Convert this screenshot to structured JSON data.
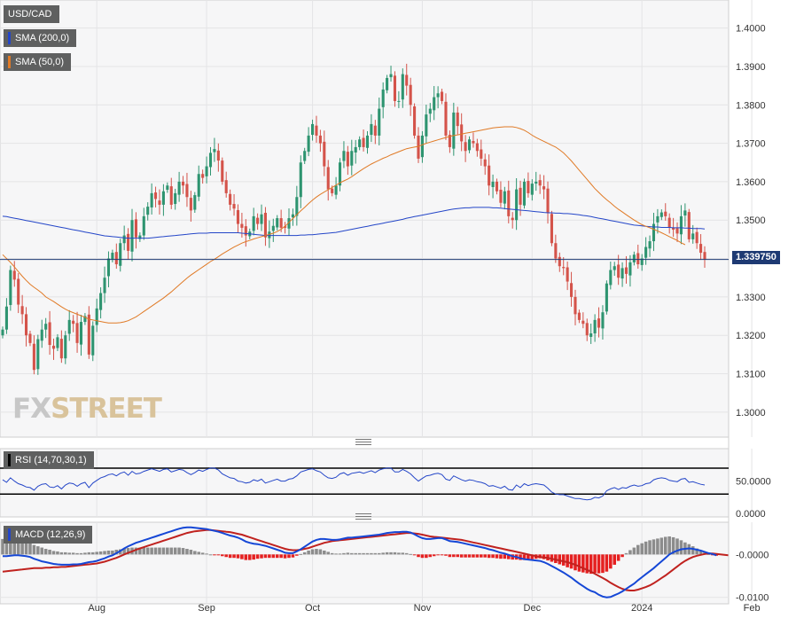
{
  "colors": {
    "up": "#2e9470",
    "down": "#d4534a",
    "sma200": "#2446c8",
    "sma50": "#e07a26",
    "rsi": "#2446c8",
    "macd": "#1547d6",
    "signal": "#c0221f",
    "hist_pos": "#8c8c8c",
    "hist_neg": "#e52020",
    "price_line": "#1e3a73"
  },
  "legend": {
    "symbol": "USD/CAD",
    "sma200": "SMA (200,0)",
    "sma50": "SMA (50,0)",
    "rsi": "RSI (14,70,30,1)",
    "macd": "MACD (12,26,9)"
  },
  "watermark": {
    "fx": "FX",
    "street": "STREET"
  },
  "current_price": "1.339750",
  "chart_data": [
    {
      "type": "candlestick",
      "title": "USD/CAD",
      "x_ticks": [
        "Aug",
        "Sep",
        "Oct",
        "Nov",
        "Dec",
        "2024",
        "Feb"
      ],
      "x_tick_index": [
        24,
        52,
        79,
        107,
        135,
        163,
        191
      ],
      "ylim": [
        1.2935,
        1.4073
      ],
      "y_ticks": [
        "1.4000",
        "1.3900",
        "1.3800",
        "1.3700",
        "1.3600",
        "1.3500",
        "1.3400",
        "1.3300",
        "1.3200",
        "1.3100",
        "1.3000"
      ],
      "y_tick_values": [
        1.4,
        1.39,
        1.38,
        1.37,
        1.36,
        1.35,
        1.34,
        1.33,
        1.32,
        1.31,
        1.3
      ],
      "closes": [
        1.3215,
        1.3275,
        1.337,
        1.3345,
        1.328,
        1.3255,
        1.32,
        1.318,
        1.311,
        1.319,
        1.3215,
        1.323,
        1.3175,
        1.3165,
        1.3195,
        1.314,
        1.32,
        1.324,
        1.323,
        1.318,
        1.3235,
        1.325,
        1.315,
        1.3225,
        1.327,
        1.331,
        1.335,
        1.34,
        1.3415,
        1.3385,
        1.344,
        1.346,
        1.342,
        1.35,
        1.3455,
        1.346,
        1.351,
        1.3535,
        1.357,
        1.3555,
        1.354,
        1.3575,
        1.359,
        1.354,
        1.357,
        1.36,
        1.359,
        1.356,
        1.3525,
        1.3565,
        1.362,
        1.361,
        1.364,
        1.3675,
        1.3685,
        1.3655,
        1.36,
        1.357,
        1.354,
        1.353,
        1.349,
        1.348,
        1.346,
        1.347,
        1.351,
        1.349,
        1.3515,
        1.3455,
        1.347,
        1.3485,
        1.3505,
        1.348,
        1.348,
        1.3505,
        1.3515,
        1.356,
        1.365,
        1.368,
        1.372,
        1.375,
        1.372,
        1.37,
        1.364,
        1.358,
        1.357,
        1.359,
        1.365,
        1.368,
        1.364,
        1.368,
        1.369,
        1.371,
        1.369,
        1.372,
        1.375,
        1.372,
        1.379,
        1.384,
        1.387,
        1.388,
        1.381,
        1.381,
        1.388,
        1.385,
        1.38,
        1.372,
        1.366,
        1.372,
        1.3775,
        1.379,
        1.382,
        1.383,
        1.381,
        1.372,
        1.369,
        1.378,
        1.3745,
        1.3705,
        1.368,
        1.371,
        1.37,
        1.368,
        1.366,
        1.364,
        1.359,
        1.36,
        1.3575,
        1.3545,
        1.3575,
        1.351,
        1.35,
        1.358,
        1.354,
        1.36,
        1.357,
        1.3595,
        1.36,
        1.359,
        1.358,
        1.352,
        1.344,
        1.34,
        1.338,
        1.3375,
        1.334,
        1.33,
        1.3255,
        1.324,
        1.323,
        1.32,
        1.3205,
        1.324,
        1.322,
        1.326,
        1.3335,
        1.337,
        1.338,
        1.335,
        1.3375,
        1.336,
        1.339,
        1.341,
        1.3385,
        1.34,
        1.343,
        1.3445,
        1.349,
        1.351,
        1.352,
        1.351,
        1.348,
        1.3475,
        1.3465,
        1.351,
        1.3525,
        1.345,
        1.3465,
        1.344,
        1.3415,
        1.3398
      ],
      "opens_note": "",
      "sma50": [
        1.341,
        1.34,
        1.339,
        1.3378,
        1.3366,
        1.3354,
        1.3343,
        1.3333,
        1.3325,
        1.3318,
        1.331,
        1.33,
        1.3294,
        1.3288,
        1.3281,
        1.3274,
        1.3268,
        1.3263,
        1.3259,
        1.3255,
        1.3251,
        1.3247,
        1.3242,
        1.324,
        1.3238,
        1.3236,
        1.3234,
        1.3232,
        1.3232,
        1.3232,
        1.3233,
        1.3235,
        1.3238,
        1.3243,
        1.3248,
        1.3255,
        1.3262,
        1.3269,
        1.3276,
        1.3283,
        1.329,
        1.3297,
        1.3305,
        1.3313,
        1.3322,
        1.3331,
        1.334,
        1.3349,
        1.3357,
        1.3364,
        1.3371,
        1.3378,
        1.3385,
        1.3392,
        1.3398,
        1.3405,
        1.3412,
        1.3418,
        1.3424,
        1.343,
        1.3435,
        1.344,
        1.3444,
        1.3447,
        1.3451,
        1.3454,
        1.3457,
        1.346,
        1.3463,
        1.3466,
        1.347,
        1.3476,
        1.3484,
        1.3494,
        1.3504,
        1.3514,
        1.3524,
        1.3533,
        1.3543,
        1.3552,
        1.356,
        1.3567,
        1.3573,
        1.3579,
        1.3585,
        1.3591,
        1.3597,
        1.3602,
        1.3607,
        1.3613,
        1.362,
        1.3627,
        1.3634,
        1.364,
        1.3646,
        1.3651,
        1.3656,
        1.3661,
        1.3665,
        1.367,
        1.3674,
        1.3678,
        1.3682,
        1.3686,
        1.3688,
        1.369,
        1.3692,
        1.3696,
        1.37,
        1.3703,
        1.3706,
        1.3709,
        1.3712,
        1.3715,
        1.3718,
        1.372,
        1.3722,
        1.3724,
        1.3726,
        1.3728,
        1.373,
        1.3732,
        1.3734,
        1.3736,
        1.3738,
        1.374,
        1.3741,
        1.3742,
        1.3743,
        1.3743,
        1.3743,
        1.3741,
        1.3738,
        1.3734,
        1.3728,
        1.3721,
        1.3715,
        1.371,
        1.3705,
        1.37,
        1.3695,
        1.369,
        1.3683,
        1.3675,
        1.3665,
        1.3654,
        1.3642,
        1.363,
        1.3618,
        1.3606,
        1.3594,
        1.3582,
        1.3572,
        1.3562,
        1.3553,
        1.3545,
        1.3536,
        1.3528,
        1.3521,
        1.3514,
        1.3507,
        1.35,
        1.3494,
        1.3488,
        1.3484,
        1.348,
        1.3476,
        1.3472,
        1.3467,
        1.3462,
        1.3457,
        1.3452,
        1.3447,
        1.3441,
        1.3436
      ],
      "sma200": [
        1.351,
        1.3509,
        1.3507,
        1.3505,
        1.3503,
        1.3501,
        1.3499,
        1.3497,
        1.3495,
        1.3493,
        1.3491,
        1.3489,
        1.3487,
        1.3485,
        1.3483,
        1.3481,
        1.3479,
        1.3477,
        1.3475,
        1.3473,
        1.3471,
        1.3469,
        1.3467,
        1.3465,
        1.3463,
        1.3461,
        1.3459,
        1.3458,
        1.3457,
        1.3456,
        1.3455,
        1.3454,
        1.3453,
        1.3453,
        1.3453,
        1.3453,
        1.3453,
        1.3453,
        1.3454,
        1.3455,
        1.3456,
        1.3457,
        1.3458,
        1.3459,
        1.346,
        1.3461,
        1.3462,
        1.3463,
        1.3464,
        1.3465,
        1.3466,
        1.3466,
        1.3466,
        1.3467,
        1.3467,
        1.3467,
        1.3467,
        1.3467,
        1.3467,
        1.3467,
        1.3467,
        1.3466,
        1.3465,
        1.3464,
        1.3463,
        1.3462,
        1.3461,
        1.346,
        1.346,
        1.346,
        1.346,
        1.346,
        1.346,
        1.346,
        1.346,
        1.346,
        1.3461,
        1.3461,
        1.3462,
        1.3462,
        1.3463,
        1.3464,
        1.3465,
        1.3466,
        1.3467,
        1.3468,
        1.347,
        1.3472,
        1.3474,
        1.3476,
        1.3478,
        1.348,
        1.3482,
        1.3484,
        1.3486,
        1.3488,
        1.349,
        1.3492,
        1.3494,
        1.3496,
        1.3498,
        1.35,
        1.3502,
        1.3505,
        1.3507,
        1.3509,
        1.3511,
        1.3513,
        1.3515,
        1.3517,
        1.3519,
        1.3521,
        1.3523,
        1.3525,
        1.3527,
        1.3529,
        1.353,
        1.3531,
        1.3532,
        1.3532,
        1.3533,
        1.3533,
        1.3533,
        1.3533,
        1.3533,
        1.3532,
        1.3532,
        1.3531,
        1.353,
        1.3529,
        1.3528,
        1.3527,
        1.3526,
        1.3525,
        1.3524,
        1.3523,
        1.3522,
        1.3521,
        1.352,
        1.3519,
        1.3519,
        1.3518,
        1.3518,
        1.3517,
        1.3517,
        1.3516,
        1.3515,
        1.3514,
        1.3512,
        1.3511,
        1.3509,
        1.3507,
        1.3505,
        1.3503,
        1.3501,
        1.3499,
        1.3497,
        1.3495,
        1.3493,
        1.3491,
        1.3489,
        1.3487,
        1.3486,
        1.3485,
        1.3484,
        1.3483,
        1.3482,
        1.3482,
        1.3481,
        1.3481,
        1.3481,
        1.348,
        1.348,
        1.348,
        1.3479,
        1.3479,
        1.3478,
        1.3478,
        1.3478,
        1.3477
      ]
    },
    {
      "type": "line",
      "title": "RSI (14,70,30,1)",
      "ylim": [
        0,
        100
      ],
      "y_ticks": [
        "50.0000",
        "0.0000"
      ],
      "y_tick_values": [
        50,
        0
      ],
      "reference_lines": [
        70,
        30
      ],
      "values": [
        52,
        48,
        55,
        50,
        46,
        44,
        41,
        40,
        36,
        42,
        45,
        46,
        41,
        40,
        43,
        38,
        44,
        47,
        46,
        42,
        46,
        48,
        40,
        47,
        51,
        55,
        57,
        60,
        61,
        58,
        62,
        64,
        59,
        65,
        61,
        62,
        65,
        67,
        69,
        67,
        65,
        68,
        69,
        64,
        66,
        68,
        67,
        63,
        60,
        63,
        67,
        65,
        68,
        70,
        70,
        67,
        61,
        58,
        55,
        54,
        50,
        49,
        47,
        48,
        52,
        50,
        53,
        47,
        49,
        51,
        53,
        50,
        50,
        53,
        54,
        58,
        64,
        66,
        68,
        69,
        66,
        64,
        59,
        55,
        54,
        56,
        61,
        63,
        59,
        62,
        63,
        64,
        62,
        64,
        66,
        63,
        67,
        69,
        70,
        70,
        64,
        64,
        68,
        65,
        61,
        55,
        50,
        54,
        58,
        59,
        61,
        62,
        60,
        53,
        51,
        58,
        55,
        52,
        50,
        52,
        51,
        49,
        48,
        46,
        42,
        43,
        41,
        39,
        42,
        37,
        36,
        44,
        40,
        46,
        43,
        45,
        46,
        45,
        44,
        39,
        33,
        30,
        29,
        29,
        27,
        25,
        23,
        23,
        22,
        21,
        22,
        25,
        24,
        27,
        35,
        38,
        40,
        37,
        40,
        39,
        42,
        44,
        42,
        43,
        46,
        47,
        52,
        54,
        55,
        54,
        51,
        50,
        49,
        53,
        54,
        48,
        49,
        47,
        45,
        44
      ]
    },
    {
      "type": "bar+line",
      "title": "MACD (12,26,9)",
      "ylim": [
        -0.0115,
        0.0075
      ],
      "y_ticks": [
        "-0.0000",
        "-0.0100"
      ],
      "y_tick_values": [
        0,
        -0.01
      ],
      "macd": [
        -0.0004,
        -0.0004,
        -0.0003,
        -0.0002,
        -0.0002,
        -0.0003,
        -0.0004,
        -0.0006,
        -0.001,
        -0.0013,
        -0.0016,
        -0.0018,
        -0.002,
        -0.0022,
        -0.0023,
        -0.0024,
        -0.0024,
        -0.0024,
        -0.0023,
        -0.0023,
        -0.0022,
        -0.002,
        -0.0018,
        -0.0017,
        -0.0015,
        -0.0012,
        -0.0009,
        -0.0005,
        -0.0002,
        0.0003,
        0.0008,
        0.0014,
        0.0019,
        0.0023,
        0.0027,
        0.003,
        0.0033,
        0.0036,
        0.0039,
        0.0042,
        0.0045,
        0.0048,
        0.0051,
        0.0054,
        0.0057,
        0.006,
        0.0062,
        0.0063,
        0.0063,
        0.0062,
        0.0061,
        0.006,
        0.0059,
        0.0057,
        0.0055,
        0.0053,
        0.005,
        0.0047,
        0.0044,
        0.0042,
        0.0039,
        0.0035,
        0.003,
        0.0027,
        0.0025,
        0.0024,
        0.0022,
        0.002,
        0.0017,
        0.0014,
        0.0011,
        0.0008,
        0.0004,
        0.0003,
        0.0003,
        0.0007,
        0.0012,
        0.0018,
        0.0024,
        0.003,
        0.0034,
        0.0036,
        0.0036,
        0.0035,
        0.0034,
        0.0034,
        0.0035,
        0.0037,
        0.0039,
        0.0039,
        0.004,
        0.0041,
        0.0042,
        0.0043,
        0.0044,
        0.0045,
        0.0046,
        0.0048,
        0.005,
        0.0051,
        0.0052,
        0.0052,
        0.0053,
        0.0053,
        0.0051,
        0.0047,
        0.0042,
        0.0038,
        0.0036,
        0.0036,
        0.0037,
        0.0038,
        0.0038,
        0.0035,
        0.0031,
        0.003,
        0.0029,
        0.0027,
        0.0025,
        0.0023,
        0.0021,
        0.0019,
        0.0017,
        0.0015,
        0.0012,
        0.001,
        0.0007,
        0.0004,
        0.0002,
        -0.0001,
        -0.0004,
        -0.0006,
        -0.0009,
        -0.0011,
        -0.0012,
        -0.0013,
        -0.0014,
        -0.0015,
        -0.0018,
        -0.0022,
        -0.0027,
        -0.0032,
        -0.0037,
        -0.0042,
        -0.0048,
        -0.0054,
        -0.0061,
        -0.0068,
        -0.0074,
        -0.008,
        -0.0085,
        -0.0088,
        -0.0094,
        -0.0098,
        -0.01,
        -0.0099,
        -0.0095,
        -0.0091,
        -0.0086,
        -0.008,
        -0.0074,
        -0.0068,
        -0.006,
        -0.0053,
        -0.0046,
        -0.0039,
        -0.0032,
        -0.0024,
        -0.0016,
        -0.0008,
        0.0,
        0.0005,
        0.0009,
        0.0012,
        0.0013,
        0.0014,
        0.0013,
        0.0011,
        0.0009,
        0.0006,
        0.0003,
        0.0001,
        -0.0002
      ],
      "signal": [
        -0.004,
        -0.0039,
        -0.0038,
        -0.0037,
        -0.0036,
        -0.0035,
        -0.0034,
        -0.0033,
        -0.0032,
        -0.0032,
        -0.0032,
        -0.0031,
        -0.0031,
        -0.003,
        -0.003,
        -0.0029,
        -0.0029,
        -0.0028,
        -0.0027,
        -0.0026,
        -0.0025,
        -0.0024,
        -0.0023,
        -0.0022,
        -0.0021,
        -0.0019,
        -0.0017,
        -0.0014,
        -0.0011,
        -0.0008,
        -0.0004,
        0.0,
        0.0004,
        0.0007,
        0.0011,
        0.0014,
        0.0017,
        0.002,
        0.0023,
        0.0026,
        0.0029,
        0.0032,
        0.0035,
        0.0038,
        0.0041,
        0.0044,
        0.0047,
        0.005,
        0.0052,
        0.0054,
        0.0055,
        0.0056,
        0.0057,
        0.0057,
        0.0056,
        0.0055,
        0.0054,
        0.0053,
        0.0052,
        0.005,
        0.0048,
        0.0046,
        0.0043,
        0.004,
        0.0037,
        0.0034,
        0.0031,
        0.0028,
        0.0025,
        0.0022,
        0.0019,
        0.0016,
        0.0013,
        0.0011,
        0.001,
        0.001,
        0.0011,
        0.0013,
        0.0015,
        0.0018,
        0.0021,
        0.0024,
        0.0027,
        0.0029,
        0.0031,
        0.0032,
        0.0033,
        0.0034,
        0.0035,
        0.0036,
        0.0037,
        0.0038,
        0.0039,
        0.004,
        0.0041,
        0.0042,
        0.0043,
        0.0044,
        0.0045,
        0.0046,
        0.0047,
        0.0048,
        0.0049,
        0.005,
        0.005,
        0.0049,
        0.0048,
        0.0046,
        0.0044,
        0.0042,
        0.0041,
        0.004,
        0.0039,
        0.0038,
        0.0037,
        0.0036,
        0.0035,
        0.0034,
        0.0032,
        0.003,
        0.0028,
        0.0026,
        0.0024,
        0.0022,
        0.002,
        0.0018,
        0.0016,
        0.0014,
        0.0012,
        0.001,
        0.0008,
        0.0006,
        0.0004,
        0.0002,
        0.0,
        -0.0002,
        -0.0004,
        -0.0006,
        -0.0007,
        -0.0008,
        -0.001,
        -0.0012,
        -0.0014,
        -0.0016,
        -0.0018,
        -0.0021,
        -0.0024,
        -0.0028,
        -0.0032,
        -0.0036,
        -0.004,
        -0.0045,
        -0.005,
        -0.0055,
        -0.006,
        -0.0066,
        -0.0071,
        -0.0076,
        -0.008,
        -0.0083,
        -0.0084,
        -0.0084,
        -0.0082,
        -0.0079,
        -0.0076,
        -0.0072,
        -0.0067,
        -0.0061,
        -0.0055,
        -0.0049,
        -0.0042,
        -0.0035,
        -0.0028,
        -0.0021,
        -0.0015,
        -0.001,
        -0.0006,
        -0.0003,
        -0.0001,
        0.0001,
        0.0002,
        0.0002,
        0.0001,
        0.0,
        -0.0001,
        -0.0002
      ]
    }
  ]
}
